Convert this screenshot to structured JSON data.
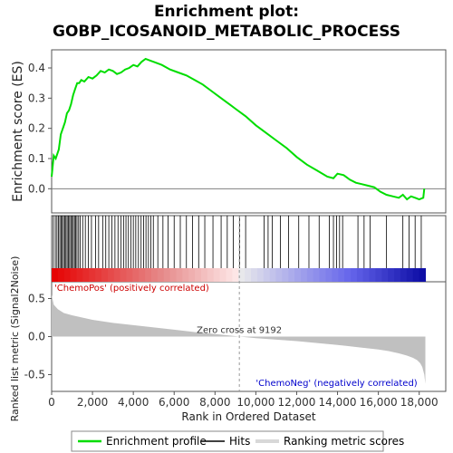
{
  "chart_data": {
    "type": "line",
    "title_line1": "Enrichment plot:",
    "title_line2": "GOBP_ICOSANOID_METABOLIC_PROCESS",
    "top_ylabel": "Enrichment score (ES)",
    "bottom_ylabel": "Ranked list metric (Signal2Noise)",
    "xlabel": "Rank in Ordered Dataset",
    "xlim": [
      0,
      19300
    ],
    "es_ylim": [
      -0.08,
      0.46
    ],
    "metric_ylim": [
      -0.72,
      0.72
    ],
    "x_ticks": [
      0,
      2000,
      4000,
      6000,
      8000,
      10000,
      12000,
      14000,
      16000,
      18000
    ],
    "x_tick_labels": [
      "0",
      "2,000",
      "4,000",
      "6,000",
      "8,000",
      "10,000",
      "12,000",
      "14,000",
      "16,000",
      "18,000"
    ],
    "es_ticks": [
      0.0,
      0.1,
      0.2,
      0.3,
      0.4
    ],
    "es_tick_labels": [
      "0.0",
      "0.1",
      "0.2",
      "0.3",
      "0.4"
    ],
    "metric_ticks": [
      -0.5,
      0.0,
      0.5
    ],
    "metric_tick_labels": [
      "-0.5",
      "0.0",
      "0.5"
    ],
    "zero_cross_label": "Zero cross at 9192",
    "zero_cross": 9192,
    "pos_label": "'ChemoPos' (positively correlated)",
    "neg_label": "'ChemoNeg' (negatively correlated)",
    "total_ranks": 18300,
    "series": [
      {
        "name": "Enrichment profile",
        "color": "#00dd00",
        "x": [
          0,
          100,
          200,
          350,
          450,
          550,
          650,
          750,
          850,
          950,
          1050,
          1150,
          1250,
          1350,
          1450,
          1600,
          1800,
          2000,
          2200,
          2400,
          2600,
          2800,
          3000,
          3200,
          3400,
          3600,
          3800,
          4000,
          4200,
          4400,
          4600,
          4800,
          5000,
          5400,
          5800,
          6200,
          6600,
          7000,
          7400,
          7800,
          8200,
          8600,
          9000,
          9500,
          10000,
          10500,
          11000,
          11500,
          12000,
          12500,
          13000,
          13500,
          13800,
          14000,
          14300,
          14600,
          14900,
          15200,
          15500,
          15800,
          16100,
          16400,
          16700,
          17000,
          17200,
          17400,
          17600,
          17800,
          18000,
          18200,
          18250
        ],
        "y": [
          0.04,
          0.11,
          0.1,
          0.13,
          0.18,
          0.2,
          0.22,
          0.25,
          0.26,
          0.28,
          0.31,
          0.33,
          0.35,
          0.35,
          0.36,
          0.355,
          0.37,
          0.365,
          0.375,
          0.39,
          0.385,
          0.395,
          0.39,
          0.38,
          0.385,
          0.395,
          0.4,
          0.41,
          0.405,
          0.42,
          0.43,
          0.425,
          0.42,
          0.41,
          0.395,
          0.385,
          0.375,
          0.36,
          0.345,
          0.325,
          0.305,
          0.285,
          0.265,
          0.24,
          0.21,
          0.185,
          0.16,
          0.135,
          0.105,
          0.08,
          0.06,
          0.04,
          0.035,
          0.05,
          0.045,
          0.03,
          0.02,
          0.015,
          0.01,
          0.005,
          -0.01,
          -0.02,
          -0.025,
          -0.03,
          -0.02,
          -0.035,
          -0.025,
          -0.03,
          -0.035,
          -0.03,
          0.0
        ]
      },
      {
        "name": "Hits",
        "color": "#000000",
        "positions": [
          80,
          180,
          260,
          330,
          400,
          460,
          520,
          580,
          640,
          700,
          760,
          820,
          880,
          940,
          1000,
          1060,
          1120,
          1180,
          1240,
          1320,
          1400,
          1520,
          1650,
          1800,
          1950,
          2150,
          2300,
          2500,
          2650,
          2800,
          2950,
          3100,
          3250,
          3400,
          3520,
          3640,
          3760,
          3880,
          4000,
          4120,
          4250,
          4380,
          4500,
          4620,
          4740,
          4860,
          4980,
          5200,
          5450,
          5700,
          6000,
          6300,
          6600,
          6900,
          7200,
          7500,
          7900,
          8300,
          8600,
          8900,
          9200,
          9500,
          10400,
          10600,
          10800,
          11200,
          11600,
          12100,
          12600,
          13100,
          13600,
          13800,
          13950,
          14100,
          14250,
          15000,
          15300,
          15600,
          16400,
          17200,
          17500,
          17800,
          18100
        ]
      },
      {
        "name": "Ranking metric scores",
        "color": "#c0c0c0",
        "x": [
          0,
          100,
          300,
          600,
          1000,
          2000,
          3000,
          4000,
          5000,
          6000,
          7000,
          8000,
          9192,
          10000,
          11000,
          12000,
          13000,
          14000,
          15000,
          16000,
          16500,
          17000,
          17400,
          17700,
          17900,
          18050,
          18150,
          18250,
          18300
        ],
        "y": [
          0.55,
          0.42,
          0.36,
          0.31,
          0.28,
          0.22,
          0.18,
          0.15,
          0.12,
          0.09,
          0.06,
          0.035,
          0.0,
          -0.02,
          -0.04,
          -0.06,
          -0.085,
          -0.11,
          -0.14,
          -0.17,
          -0.19,
          -0.22,
          -0.25,
          -0.28,
          -0.31,
          -0.35,
          -0.4,
          -0.5,
          -0.62
        ]
      }
    ]
  }
}
